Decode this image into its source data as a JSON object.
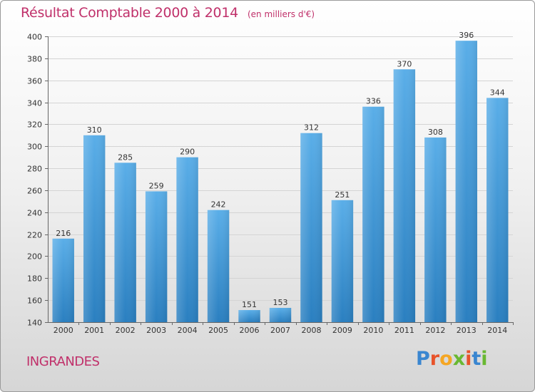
{
  "header": {
    "title": "Résultat Comptable 2000 à 2014",
    "subtitle": "(en milliers d'€)"
  },
  "footer": {
    "town": "INGRANDES",
    "logo_letters": [
      "P",
      "r",
      "o",
      "x",
      "i",
      "t",
      "i"
    ],
    "logo_colors": [
      "#3a86d0",
      "#e8532a",
      "#f5a623",
      "#69b832",
      "#e8532a",
      "#3a86d0",
      "#69b832"
    ]
  },
  "chart_data": {
    "type": "bar",
    "title": "Résultat Comptable 2000 à 2014",
    "subtitle": "(en milliers d'€)",
    "xlabel": "",
    "ylabel": "",
    "categories": [
      "2000",
      "2001",
      "2002",
      "2003",
      "2004",
      "2005",
      "2006",
      "2007",
      "2008",
      "2009",
      "2010",
      "2011",
      "2012",
      "2013",
      "2014"
    ],
    "values": [
      216,
      310,
      285,
      259,
      290,
      242,
      151,
      153,
      312,
      251,
      336,
      370,
      308,
      396,
      344
    ],
    "ylim": [
      140,
      400
    ],
    "yticks": [
      140,
      160,
      180,
      200,
      220,
      240,
      260,
      280,
      300,
      320,
      340,
      360,
      380,
      400
    ],
    "grid": true,
    "bar_color_top": "#5aaee8",
    "bar_color_bottom": "#2a7fc0",
    "data_labels": true
  }
}
